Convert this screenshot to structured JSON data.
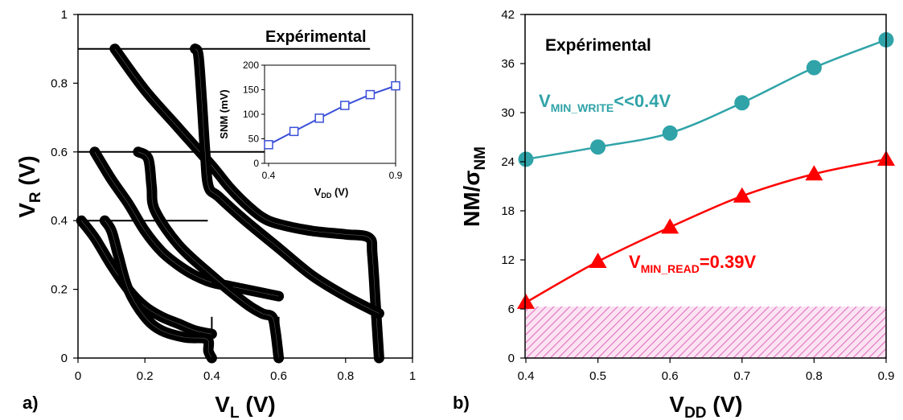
{
  "panel_labels": {
    "a": "a)",
    "b": "b)"
  },
  "colors": {
    "write": "#2fa3a8",
    "read": "#ff0000",
    "inset": "#3a4fd8",
    "hatch": "#e070c0",
    "butterfly": "#000000"
  },
  "chart_data": [
    {
      "id": "a",
      "type": "line",
      "title": "Expérimental",
      "xlabel": {
        "main": "V",
        "sub": "L",
        "unit": " (V)"
      },
      "ylabel": {
        "main": "V",
        "sub": "R",
        "unit": " (V)"
      },
      "xlim": [
        0,
        1
      ],
      "ylim": [
        0,
        1
      ],
      "xticks": [
        "0",
        "0.2",
        "0.4",
        "0.6",
        "0.8",
        "1"
      ],
      "yticks": [
        "0",
        "0.2",
        "0.4",
        "0.6",
        "0.8",
        "1"
      ],
      "vdd": [
        0.4,
        0.6,
        0.9
      ],
      "curves": [
        {
          "vdd": 0.4,
          "name": "V_R vs V_L",
          "points": [
            [
              0.01,
              0.4
            ],
            [
              0.05,
              0.35
            ],
            [
              0.1,
              0.27
            ],
            [
              0.15,
              0.2
            ],
            [
              0.2,
              0.15
            ],
            [
              0.25,
              0.12
            ],
            [
              0.3,
              0.1
            ],
            [
              0.35,
              0.08
            ],
            [
              0.4,
              0.07
            ]
          ]
        },
        {
          "vdd": 0.4,
          "name": "V_L vs V_R",
          "points": [
            [
              0.08,
              0.4
            ],
            [
              0.1,
              0.37
            ],
            [
              0.12,
              0.3
            ],
            [
              0.15,
              0.2
            ],
            [
              0.2,
              0.12
            ],
            [
              0.25,
              0.08
            ],
            [
              0.32,
              0.06
            ],
            [
              0.385,
              0.055
            ],
            [
              0.39,
              0.02
            ],
            [
              0.4,
              0.0
            ]
          ]
        },
        {
          "vdd": 0.6,
          "name": "V_R vs V_L",
          "points": [
            [
              0.05,
              0.6
            ],
            [
              0.1,
              0.52
            ],
            [
              0.15,
              0.45
            ],
            [
              0.2,
              0.37
            ],
            [
              0.25,
              0.31
            ],
            [
              0.3,
              0.27
            ],
            [
              0.35,
              0.24
            ],
            [
              0.4,
              0.22
            ],
            [
              0.45,
              0.21
            ],
            [
              0.5,
              0.2
            ],
            [
              0.55,
              0.19
            ],
            [
              0.6,
              0.18
            ]
          ]
        },
        {
          "vdd": 0.6,
          "name": "V_L vs V_R",
          "points": [
            [
              0.18,
              0.6
            ],
            [
              0.21,
              0.58
            ],
            [
              0.22,
              0.5
            ],
            [
              0.23,
              0.43
            ],
            [
              0.3,
              0.33
            ],
            [
              0.4,
              0.24
            ],
            [
              0.5,
              0.16
            ],
            [
              0.55,
              0.13
            ],
            [
              0.58,
              0.12
            ],
            [
              0.59,
              0.08
            ],
            [
              0.6,
              0.0
            ]
          ]
        },
        {
          "vdd": 0.9,
          "name": "V_R vs V_L",
          "points": [
            [
              0.11,
              0.9
            ],
            [
              0.2,
              0.78
            ],
            [
              0.3,
              0.67
            ],
            [
              0.4,
              0.56
            ],
            [
              0.45,
              0.5
            ],
            [
              0.5,
              0.45
            ],
            [
              0.55,
              0.41
            ],
            [
              0.6,
              0.39
            ],
            [
              0.7,
              0.37
            ],
            [
              0.8,
              0.36
            ],
            [
              0.87,
              0.35
            ],
            [
              0.88,
              0.3
            ],
            [
              0.89,
              0.15
            ],
            [
              0.9,
              0.0
            ]
          ]
        },
        {
          "vdd": 0.9,
          "name": "V_L vs V_R",
          "points": [
            [
              0.35,
              0.9
            ],
            [
              0.36,
              0.88
            ],
            [
              0.37,
              0.75
            ],
            [
              0.38,
              0.6
            ],
            [
              0.39,
              0.5
            ],
            [
              0.42,
              0.47
            ],
            [
              0.5,
              0.4
            ],
            [
              0.6,
              0.32
            ],
            [
              0.7,
              0.24
            ],
            [
              0.8,
              0.18
            ],
            [
              0.9,
              0.13
            ]
          ]
        }
      ],
      "inset": {
        "type": "line",
        "xlabel": {
          "main": "V",
          "sub": "DD",
          "unit": " (V)"
        },
        "ylabel": "SNM (mV)",
        "xlim": [
          0.4,
          0.9
        ],
        "ylim": [
          0,
          200
        ],
        "xticks": [
          "0.4",
          "0.9"
        ],
        "yticks": [
          "0",
          "50",
          "100",
          "150",
          "200"
        ],
        "x": [
          0.4,
          0.5,
          0.6,
          0.7,
          0.8,
          0.9
        ],
        "values": [
          38,
          65,
          92,
          118,
          140,
          158
        ]
      }
    },
    {
      "id": "b",
      "type": "line",
      "title": "Expérimental",
      "xlabel": {
        "main": "V",
        "sub": "DD",
        "unit": " (V)"
      },
      "ylabel": {
        "main": "NM/σ",
        "sub": "NM"
      },
      "xlim": [
        0.4,
        0.9
      ],
      "ylim": [
        0,
        42
      ],
      "xticks": [
        "0.4",
        "0.5",
        "0.6",
        "0.7",
        "0.8",
        "0.9"
      ],
      "yticks": [
        "0",
        "6",
        "12",
        "18",
        "24",
        "30",
        "36",
        "42"
      ],
      "x": [
        0.4,
        0.5,
        0.6,
        0.7,
        0.8,
        0.9
      ],
      "series": [
        {
          "name": "write",
          "values": [
            24.3,
            25.8,
            27.5,
            31.2,
            35.5,
            38.9
          ]
        },
        {
          "name": "read",
          "values": [
            6.8,
            11.8,
            16.0,
            19.8,
            22.5,
            24.3
          ]
        }
      ],
      "hatch_band": [
        0,
        6.3
      ],
      "annotations": [
        {
          "series": "write",
          "main": "V",
          "sub": "MIN_WRITE",
          "rest": "<<0.4V"
        },
        {
          "series": "read",
          "main": "V",
          "sub": "MIN_READ",
          "rest": "=0.39V"
        }
      ]
    }
  ]
}
